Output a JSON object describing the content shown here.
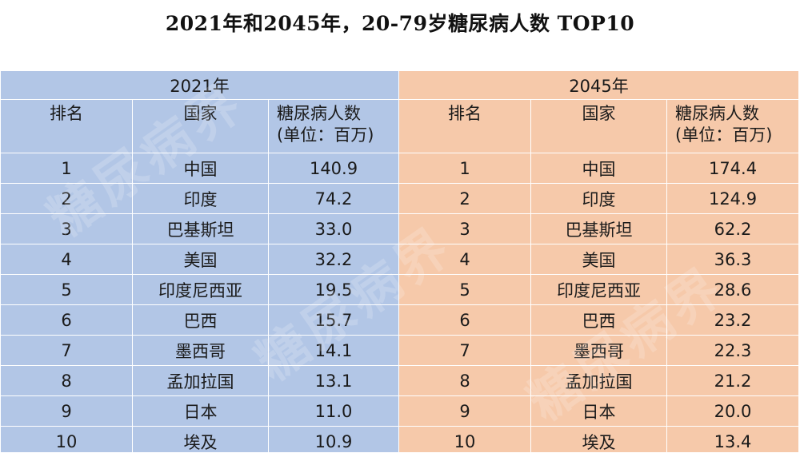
{
  "title": "2021年和2045年，20-79岁糖尿病人数 TOP10",
  "watermark": "糖尿病界",
  "headers": {
    "rank": "排名",
    "country": "国家",
    "metric_line1": "糖尿病人数",
    "metric_line2": "(单位：百万)"
  },
  "colors": {
    "panel_2021": "#b2c6e6",
    "panel_2045": "#f6c9aa"
  },
  "chart_data": {
    "type": "table",
    "title": "2021年和2045年，20-79岁糖尿病人数 TOP10",
    "tables": [
      {
        "year": "2021年",
        "columns": [
          "排名",
          "国家",
          "糖尿病人数(单位：百万)"
        ],
        "rows": [
          [
            "1",
            "中国",
            "140.9"
          ],
          [
            "2",
            "印度",
            "74.2"
          ],
          [
            "3",
            "巴基斯坦",
            "33.0"
          ],
          [
            "4",
            "美国",
            "32.2"
          ],
          [
            "5",
            "印度尼西亚",
            "19.5"
          ],
          [
            "6",
            "巴西",
            "15.7"
          ],
          [
            "7",
            "墨西哥",
            "14.1"
          ],
          [
            "8",
            "孟加拉国",
            "13.1"
          ],
          [
            "9",
            "日本",
            "11.0"
          ],
          [
            "10",
            "埃及",
            "10.9"
          ]
        ]
      },
      {
        "year": "2045年",
        "columns": [
          "排名",
          "国家",
          "糖尿病人数(单位：百万)"
        ],
        "rows": [
          [
            "1",
            "中国",
            "174.4"
          ],
          [
            "2",
            "印度",
            "124.9"
          ],
          [
            "3",
            "巴基斯坦",
            "62.2"
          ],
          [
            "4",
            "美国",
            "36.3"
          ],
          [
            "5",
            "印度尼西亚",
            "28.6"
          ],
          [
            "6",
            "巴西",
            "23.2"
          ],
          [
            "7",
            "墨西哥",
            "22.3"
          ],
          [
            "8",
            "孟加拉国",
            "21.2"
          ],
          [
            "9",
            "日本",
            "20.0"
          ],
          [
            "10",
            "埃及",
            "13.4"
          ]
        ]
      }
    ]
  }
}
